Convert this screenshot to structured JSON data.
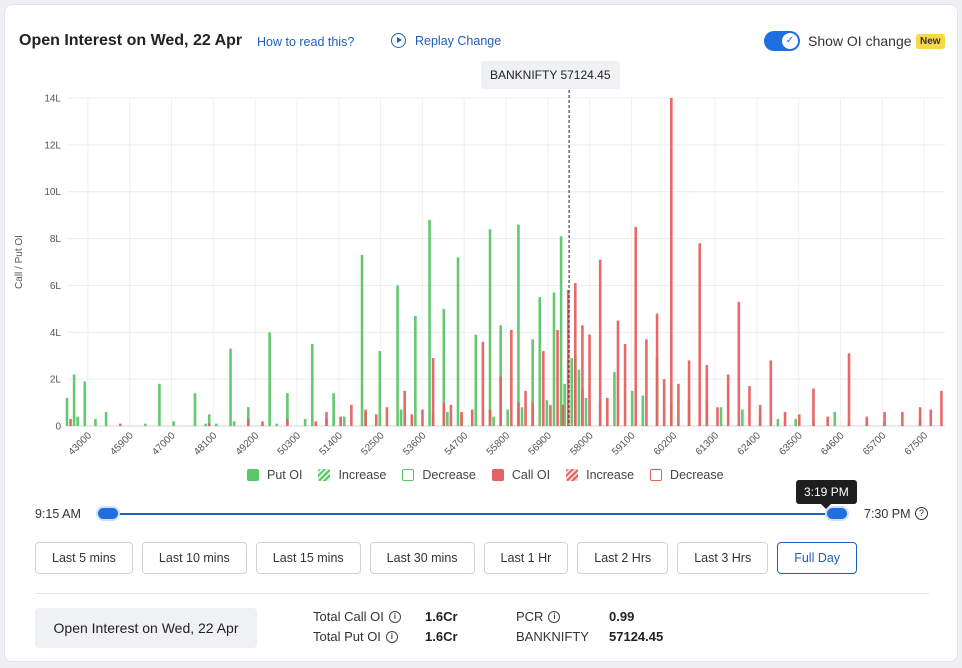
{
  "header": {
    "title": "Open Interest on Wed, 22 Apr",
    "how_to_read": "How to read this?",
    "replay": "Replay Change",
    "toggle_label": "Show OI change",
    "new_badge": "New",
    "toggle_on": true
  },
  "chart_data": {
    "type": "bar",
    "ylabel": "Call / Put OI",
    "xlabel": "",
    "ylim": [
      0,
      14
    ],
    "y_unit": "L",
    "y_ticks": [
      "0",
      "2L",
      "4L",
      "6L",
      "8L",
      "10L",
      "12L",
      "14L"
    ],
    "x_ticks": [
      "43000",
      "45900",
      "47000",
      "48100",
      "49200",
      "50300",
      "51400",
      "52500",
      "53600",
      "54700",
      "55800",
      "56900",
      "58000",
      "59100",
      "60200",
      "61300",
      "62400",
      "63500",
      "64600",
      "65700",
      "67500"
    ],
    "x_range": [
      43000,
      67700
    ],
    "spot_label": "BANKNIFTY 57124.45",
    "spot_value": 57124.45,
    "series": [
      {
        "name": "Put OI",
        "color": "#5cc66a",
        "points": [
          [
            43000,
            1.2
          ],
          [
            43200,
            2.2
          ],
          [
            43300,
            0.4
          ],
          [
            43500,
            1.9
          ],
          [
            43800,
            0.3
          ],
          [
            44100,
            0.6
          ],
          [
            45200,
            0.1
          ],
          [
            45600,
            1.8
          ],
          [
            46000,
            0.2
          ],
          [
            46600,
            1.4
          ],
          [
            46900,
            0.1
          ],
          [
            47000,
            0.5
          ],
          [
            47200,
            0.1
          ],
          [
            47600,
            3.3
          ],
          [
            47700,
            0.2
          ],
          [
            48100,
            0.8
          ],
          [
            48700,
            4.0
          ],
          [
            48900,
            0.1
          ],
          [
            49200,
            1.4
          ],
          [
            49700,
            0.3
          ],
          [
            49900,
            3.5
          ],
          [
            50300,
            0.3
          ],
          [
            50500,
            1.4
          ],
          [
            50800,
            0.4
          ],
          [
            51300,
            7.3
          ],
          [
            51400,
            0.6
          ],
          [
            51800,
            3.2
          ],
          [
            52300,
            6.0
          ],
          [
            52400,
            0.7
          ],
          [
            52800,
            4.7
          ],
          [
            53200,
            8.8
          ],
          [
            53300,
            0.5
          ],
          [
            53600,
            5.0
          ],
          [
            53700,
            0.6
          ],
          [
            54000,
            7.2
          ],
          [
            54100,
            0.5
          ],
          [
            54500,
            3.9
          ],
          [
            54900,
            8.4
          ],
          [
            55000,
            0.4
          ],
          [
            55200,
            4.3
          ],
          [
            55400,
            0.7
          ],
          [
            55700,
            8.6
          ],
          [
            55800,
            0.8
          ],
          [
            56100,
            3.7
          ],
          [
            56300,
            5.5
          ],
          [
            56500,
            1.1
          ],
          [
            56700,
            5.7
          ],
          [
            56900,
            8.1
          ],
          [
            57000,
            1.8
          ],
          [
            57100,
            2.8
          ],
          [
            57200,
            2.9
          ],
          [
            57300,
            3.0
          ],
          [
            57400,
            2.4
          ],
          [
            57500,
            1.6
          ],
          [
            57600,
            1.2
          ],
          [
            58000,
            1.0
          ],
          [
            58400,
            2.3
          ],
          [
            58900,
            1.5
          ],
          [
            59200,
            1.3
          ],
          [
            59600,
            2.9
          ],
          [
            60000,
            1.0
          ],
          [
            60500,
            1.1
          ],
          [
            61000,
            1.0
          ],
          [
            61400,
            0.8
          ],
          [
            62000,
            0.7
          ],
          [
            62500,
            0.4
          ],
          [
            63000,
            0.3
          ],
          [
            63500,
            0.3
          ],
          [
            64000,
            0.2
          ],
          [
            64600,
            0.6
          ],
          [
            65000,
            0.2
          ],
          [
            65500,
            0.3
          ],
          [
            66000,
            0.2
          ],
          [
            67000,
            0.3
          ]
        ]
      },
      {
        "name": "Call OI",
        "color": "#e56262",
        "points": [
          [
            43100,
            0.3
          ],
          [
            44500,
            0.1
          ],
          [
            47000,
            0.1
          ],
          [
            48100,
            0.3
          ],
          [
            48500,
            0.2
          ],
          [
            49200,
            0.3
          ],
          [
            50000,
            0.2
          ],
          [
            50300,
            0.6
          ],
          [
            50700,
            0.4
          ],
          [
            51000,
            0.9
          ],
          [
            51400,
            0.7
          ],
          [
            51700,
            0.5
          ],
          [
            52000,
            0.8
          ],
          [
            52500,
            1.5
          ],
          [
            52700,
            0.5
          ],
          [
            53000,
            0.7
          ],
          [
            53300,
            2.9
          ],
          [
            53600,
            1.0
          ],
          [
            53800,
            0.9
          ],
          [
            54100,
            0.6
          ],
          [
            54400,
            0.7
          ],
          [
            54700,
            3.6
          ],
          [
            54900,
            0.7
          ],
          [
            55200,
            2.1
          ],
          [
            55500,
            4.1
          ],
          [
            55700,
            1.0
          ],
          [
            55900,
            1.5
          ],
          [
            56100,
            1.0
          ],
          [
            56400,
            3.2
          ],
          [
            56600,
            0.9
          ],
          [
            56800,
            4.1
          ],
          [
            56950,
            0.9
          ],
          [
            57100,
            5.8
          ],
          [
            57300,
            6.1
          ],
          [
            57500,
            4.3
          ],
          [
            57700,
            3.9
          ],
          [
            58000,
            7.1
          ],
          [
            58200,
            1.2
          ],
          [
            58500,
            4.5
          ],
          [
            58700,
            3.5
          ],
          [
            59000,
            8.5
          ],
          [
            59300,
            3.7
          ],
          [
            59600,
            4.8
          ],
          [
            59800,
            2.0
          ],
          [
            60000,
            14.0
          ],
          [
            60200,
            1.8
          ],
          [
            60500,
            2.8
          ],
          [
            60800,
            7.8
          ],
          [
            61000,
            2.6
          ],
          [
            61300,
            0.8
          ],
          [
            61600,
            2.2
          ],
          [
            61900,
            5.3
          ],
          [
            62200,
            1.7
          ],
          [
            62500,
            0.9
          ],
          [
            62800,
            2.8
          ],
          [
            63200,
            0.6
          ],
          [
            63600,
            0.5
          ],
          [
            64000,
            1.6
          ],
          [
            64400,
            0.4
          ],
          [
            65000,
            3.1
          ],
          [
            65500,
            0.4
          ],
          [
            66000,
            0.6
          ],
          [
            66500,
            0.6
          ],
          [
            67000,
            0.8
          ],
          [
            67300,
            0.7
          ],
          [
            67600,
            1.5
          ]
        ]
      }
    ],
    "legend": [
      "Put OI",
      "Increase",
      "Decrease",
      "Call OI",
      "Increase",
      "Decrease"
    ],
    "legend_position": "bottom"
  },
  "slider": {
    "start": "9:15 AM",
    "end": "7:30 PM",
    "current": "3:19 PM",
    "current_fraction": 1.0
  },
  "time_buttons": [
    "Last 5 mins",
    "Last 10 mins",
    "Last 15 mins",
    "Last 30 mins",
    "Last 1 Hr",
    "Last 2 Hrs",
    "Last 3 Hrs",
    "Full Day"
  ],
  "active_button": "Full Day",
  "footer": {
    "title": "Open Interest on Wed, 22 Apr",
    "total_call_label": "Total Call OI",
    "total_call_value": "1.6Cr",
    "total_put_label": "Total Put OI",
    "total_put_value": "1.6Cr",
    "pcr_label": "PCR",
    "pcr_value": "0.99",
    "index_label": "BANKNIFTY",
    "index_value": "57124.45"
  }
}
